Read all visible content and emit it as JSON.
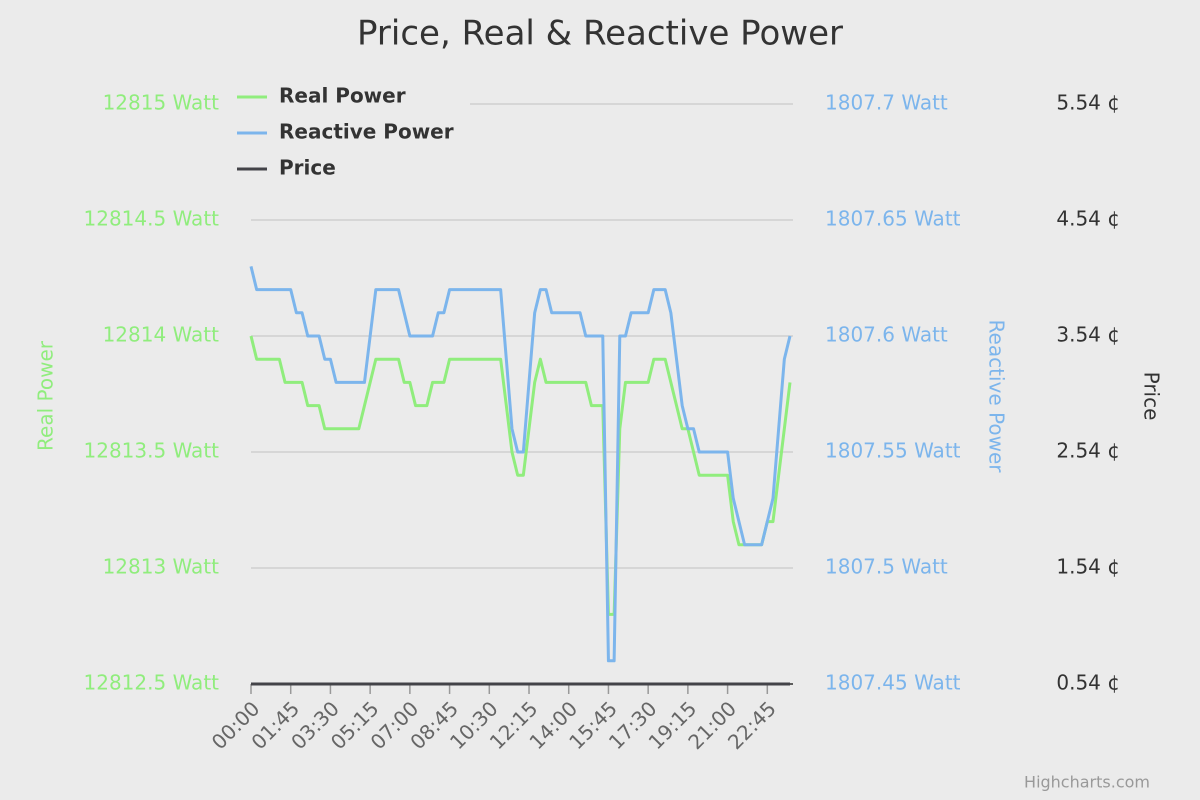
{
  "chart_data": {
    "type": "line",
    "title": "Price, Real & Reactive Power",
    "credit": "Highcharts.com",
    "ylabel": "Real Power",
    "y2label": "Reactive Power",
    "y3label": "Price",
    "categories": [
      "00:00",
      null,
      null,
      null,
      null,
      null,
      null,
      "01:45",
      null,
      null,
      null,
      null,
      null,
      null,
      "03:30",
      null,
      null,
      null,
      null,
      null,
      null,
      "05:15",
      null,
      null,
      null,
      null,
      null,
      null,
      "07:00",
      null,
      null,
      null,
      null,
      null,
      null,
      "08:45",
      null,
      null,
      null,
      null,
      null,
      null,
      "10:30",
      null,
      null,
      null,
      null,
      null,
      null,
      "12:15",
      null,
      null,
      null,
      null,
      null,
      null,
      "14:00",
      null,
      null,
      null,
      null,
      null,
      null,
      "15:45",
      null,
      null,
      null,
      null,
      null,
      null,
      "17:30",
      null,
      null,
      null,
      null,
      null,
      null,
      "19:15",
      null,
      null,
      null,
      null,
      null,
      null,
      "21:00",
      null,
      null,
      null,
      null,
      null,
      null,
      "22:45",
      null,
      null,
      null,
      null
    ],
    "ylim": [
      12812.5,
      12815
    ],
    "yticks": [
      {
        "value": 12812.5,
        "label": "12812.5 Watt"
      },
      {
        "value": 12813,
        "label": "12813 Watt"
      },
      {
        "value": 12813.5,
        "label": "12813.5 Watt"
      },
      {
        "value": 12814,
        "label": "12814 Watt"
      },
      {
        "value": 12814.5,
        "label": "12814.5 Watt"
      },
      {
        "value": 12815,
        "label": "12815 Watt"
      }
    ],
    "y2lim": [
      1807.45,
      1807.7
    ],
    "y2ticks": [
      {
        "value": 1807.45,
        "label": "1807.45 Watt"
      },
      {
        "value": 1807.5,
        "label": "1807.5 Watt"
      },
      {
        "value": 1807.55,
        "label": "1807.55 Watt"
      },
      {
        "value": 1807.6,
        "label": "1807.6 Watt"
      },
      {
        "value": 1807.65,
        "label": "1807.65 Watt"
      },
      {
        "value": 1807.7,
        "label": "1807.7 Watt"
      }
    ],
    "y3lim": [
      0.54,
      5.54
    ],
    "y3ticks": [
      {
        "value": 0.54,
        "label": "0.54 ¢"
      },
      {
        "value": 1.54,
        "label": "1.54 ¢"
      },
      {
        "value": 2.54,
        "label": "2.54 ¢"
      },
      {
        "value": 3.54,
        "label": "3.54 ¢"
      },
      {
        "value": 4.54,
        "label": "4.54 ¢"
      },
      {
        "value": 5.54,
        "label": "5.54 ¢"
      }
    ],
    "grid": true,
    "legend": "top-left",
    "series": [
      {
        "name": "Real Power",
        "color": "#90ed7d",
        "axis": "y",
        "values": [
          12814,
          12813.9,
          12813.9,
          12813.9,
          12813.9,
          12813.9,
          12813.8,
          12813.8,
          12813.8,
          12813.8,
          12813.7,
          12813.7,
          12813.7,
          12813.6,
          12813.6,
          12813.6,
          12813.6,
          12813.6,
          12813.6,
          12813.6,
          12813.7,
          12813.8,
          12813.9,
          12813.9,
          12813.9,
          12813.9,
          12813.9,
          12813.8,
          12813.8,
          12813.7,
          12813.7,
          12813.7,
          12813.8,
          12813.8,
          12813.8,
          12813.9,
          12813.9,
          12813.9,
          12813.9,
          12813.9,
          12813.9,
          12813.9,
          12813.9,
          12813.9,
          12813.9,
          12813.7,
          12813.5,
          12813.4,
          12813.4,
          12813.6,
          12813.8,
          12813.9,
          12813.8,
          12813.8,
          12813.8,
          12813.8,
          12813.8,
          12813.8,
          12813.8,
          12813.8,
          12813.7,
          12813.7,
          12813.7,
          12812.8,
          12812.8,
          12813.6,
          12813.8,
          12813.8,
          12813.8,
          12813.8,
          12813.8,
          12813.9,
          12813.9,
          12813.9,
          12813.8,
          12813.7,
          12813.6,
          12813.6,
          12813.5,
          12813.4,
          12813.4,
          12813.4,
          12813.4,
          12813.4,
          12813.4,
          12813.2,
          12813.1,
          12813.1,
          12813.1,
          12813.1,
          12813.1,
          12813.2,
          12813.2,
          12813.4,
          12813.6,
          12813.8
        ]
      },
      {
        "name": "Reactive Power",
        "color": "#7cb5ec",
        "axis": "y2",
        "values": [
          1807.63,
          1807.62,
          1807.62,
          1807.62,
          1807.62,
          1807.62,
          1807.62,
          1807.62,
          1807.61,
          1807.61,
          1807.6,
          1807.6,
          1807.6,
          1807.59,
          1807.59,
          1807.58,
          1807.58,
          1807.58,
          1807.58,
          1807.58,
          1807.58,
          1807.6,
          1807.62,
          1807.62,
          1807.62,
          1807.62,
          1807.62,
          1807.61,
          1807.6,
          1807.6,
          1807.6,
          1807.6,
          1807.6,
          1807.61,
          1807.61,
          1807.62,
          1807.62,
          1807.62,
          1807.62,
          1807.62,
          1807.62,
          1807.62,
          1807.62,
          1807.62,
          1807.62,
          1807.59,
          1807.56,
          1807.55,
          1807.55,
          1807.58,
          1807.61,
          1807.62,
          1807.62,
          1807.61,
          1807.61,
          1807.61,
          1807.61,
          1807.61,
          1807.61,
          1807.6,
          1807.6,
          1807.6,
          1807.6,
          1807.46,
          1807.46,
          1807.6,
          1807.6,
          1807.61,
          1807.61,
          1807.61,
          1807.61,
          1807.62,
          1807.62,
          1807.62,
          1807.61,
          1807.59,
          1807.57,
          1807.56,
          1807.56,
          1807.55,
          1807.55,
          1807.55,
          1807.55,
          1807.55,
          1807.55,
          1807.53,
          1807.52,
          1807.51,
          1807.51,
          1807.51,
          1807.51,
          1807.52,
          1807.53,
          1807.56,
          1807.59,
          1807.6
        ]
      },
      {
        "name": "Price",
        "color": "#434348",
        "axis": "y3",
        "values": [
          0.54,
          0.54,
          0.54,
          0.54,
          0.54,
          0.54,
          0.54,
          0.54,
          0.54,
          0.54,
          0.54,
          0.54,
          0.54,
          0.54,
          0.54,
          0.54,
          0.54,
          0.54,
          0.54,
          0.54,
          0.54,
          0.54,
          0.54,
          0.54,
          0.54,
          0.54,
          0.54,
          0.54,
          0.54,
          0.54,
          0.54,
          0.54,
          0.54,
          0.54,
          0.54,
          0.54,
          0.54,
          0.54,
          0.54,
          0.54,
          0.54,
          0.54,
          0.54,
          0.54,
          0.54,
          0.54,
          0.54,
          0.54,
          0.54,
          0.54,
          0.54,
          0.54,
          0.54,
          0.54,
          0.54,
          0.54,
          0.54,
          0.54,
          0.54,
          0.54,
          0.54,
          0.54,
          0.54,
          0.54,
          0.54,
          0.54,
          0.54,
          0.54,
          0.54,
          0.54,
          0.54,
          0.54,
          0.54,
          0.54,
          0.54,
          0.54,
          0.54,
          0.54,
          0.54,
          0.54,
          0.54,
          0.54,
          0.54,
          0.54,
          0.54,
          0.54,
          0.54,
          0.54,
          0.54,
          0.54,
          0.54,
          0.54,
          0.54,
          0.54,
          0.54,
          0.54
        ]
      }
    ]
  }
}
